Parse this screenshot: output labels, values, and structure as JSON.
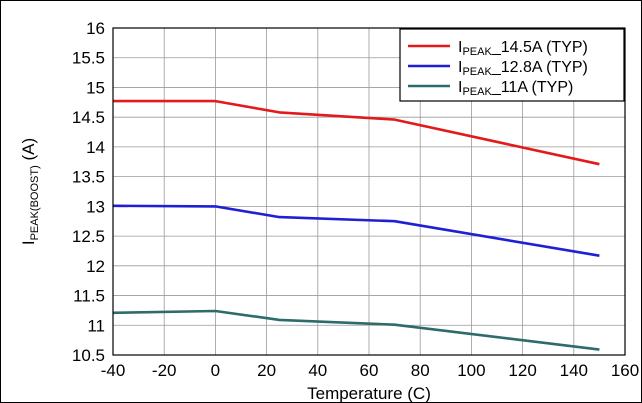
{
  "chart_data": {
    "type": "line",
    "xlabel": "Temperature (C)",
    "ylabel": {
      "main": "I",
      "subscript": "PEAK(BOOST)",
      "suffix": " (A)"
    },
    "xlim": [
      -40,
      160
    ],
    "ylim": [
      10.5,
      16
    ],
    "x_ticks": [
      -40,
      -20,
      0,
      20,
      40,
      60,
      80,
      100,
      120,
      140,
      160
    ],
    "y_ticks": [
      10.5,
      11,
      11.5,
      12,
      12.5,
      13,
      13.5,
      14,
      14.5,
      15,
      15.5,
      16
    ],
    "y_tick_labels": [
      "10.5",
      "11",
      "11.5",
      "12",
      "12.5",
      "13",
      "13.5",
      "14",
      "14.5",
      "15",
      "15.5",
      "16"
    ],
    "grid": true,
    "legend_position": "top-right",
    "series": [
      {
        "name": "IPEAK_14.5A (TYP)",
        "legend_main": "I",
        "legend_sub": "PEAK",
        "legend_suffix": "_14.5A (TYP)",
        "color": "#e31a1c",
        "x": [
          -40,
          0,
          25,
          70,
          150
        ],
        "values": [
          14.77,
          14.77,
          14.58,
          14.46,
          13.71
        ]
      },
      {
        "name": "IPEAK_12.8A (TYP)",
        "legend_main": "I",
        "legend_sub": "PEAK",
        "legend_suffix": "_12.8A (TYP)",
        "color": "#1f1fd6",
        "x": [
          -40,
          0,
          25,
          70,
          150
        ],
        "values": [
          13.01,
          13.0,
          12.82,
          12.75,
          12.17
        ]
      },
      {
        "name": "IPEAK_11A (TYP)",
        "legend_main": "I",
        "legend_sub": "PEAK",
        "legend_suffix": "_11A (TYP)",
        "color": "#2e6b6b",
        "x": [
          -40,
          0,
          25,
          70,
          150
        ],
        "values": [
          11.21,
          11.24,
          11.09,
          11.01,
          10.59
        ]
      }
    ]
  }
}
